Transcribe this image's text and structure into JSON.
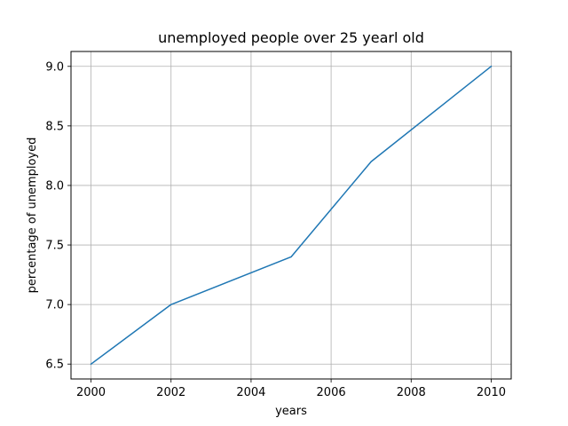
{
  "chart_data": {
    "type": "line",
    "title": "unemployed people over 25 yearl old",
    "xlabel": "years",
    "ylabel": "percentage of unemployed",
    "x": [
      2000,
      2002,
      2005,
      2007,
      2010
    ],
    "series": [
      {
        "values": [
          6.5,
          7.0,
          7.4,
          8.2,
          9.0
        ],
        "color": "#1f77b4"
      }
    ],
    "xlim": [
      1999.5,
      2010.5
    ],
    "ylim": [
      6.375,
      9.125
    ],
    "xticks": [
      2000,
      2002,
      2004,
      2006,
      2008,
      2010
    ],
    "xtick_labels": [
      "2000",
      "2002",
      "2004",
      "2006",
      "2008",
      "2010"
    ],
    "yticks": [
      6.5,
      7.0,
      7.5,
      8.0,
      8.5,
      9.0
    ],
    "ytick_labels": [
      "6.5",
      "7.0",
      "7.5",
      "8.0",
      "8.5",
      "9.0"
    ],
    "grid": true,
    "legend": "none"
  }
}
